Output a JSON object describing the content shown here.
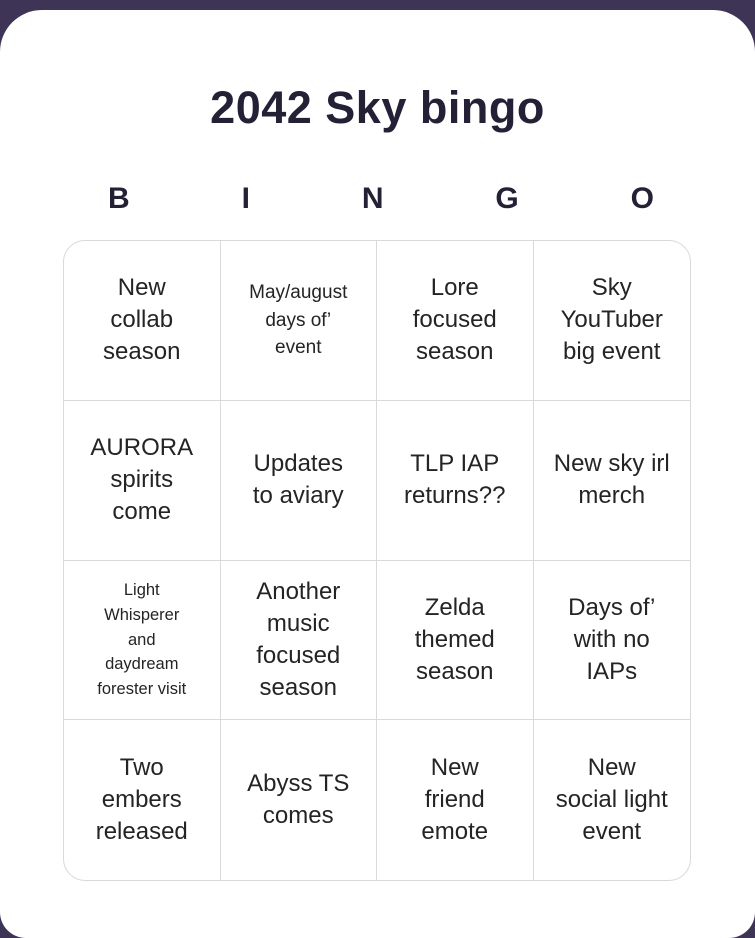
{
  "title": "2042 Sky bingo",
  "header": {
    "letters": [
      "B",
      "I",
      "N",
      "G",
      "O"
    ]
  },
  "grid": {
    "cells": [
      {
        "text": "New\ncollab\nseason"
      },
      {
        "text": "May/august\ndays of’\nevent"
      },
      {
        "text": "Lore\nfocused\nseason"
      },
      {
        "text": "Sky\nYouTuber\nbig event"
      },
      {
        "text": "AURORA\nspirits\ncome"
      },
      {
        "text": "Updates\nto aviary"
      },
      {
        "text": "TLP IAP\nreturns??"
      },
      {
        "text": "New sky irl\nmerch"
      },
      {
        "text": "Light\nWhisperer\nand\ndaydream\nforester visit"
      },
      {
        "text": "Another\nmusic\nfocused\nseason"
      },
      {
        "text": "Zelda\nthemed\nseason"
      },
      {
        "text": "Days of’\nwith no\nIAPs"
      },
      {
        "text": "Two\nembers\nreleased"
      },
      {
        "text": "Abyss TS\ncomes"
      },
      {
        "text": "New\nfriend\nemote"
      },
      {
        "text": "New\nsocial light\nevent"
      }
    ]
  },
  "colors": {
    "page_background": "#3e3456",
    "card_background": "#ffffff",
    "heading_text": "#242137",
    "cell_text": "#242424",
    "grid_border": "#d9d9d9"
  }
}
